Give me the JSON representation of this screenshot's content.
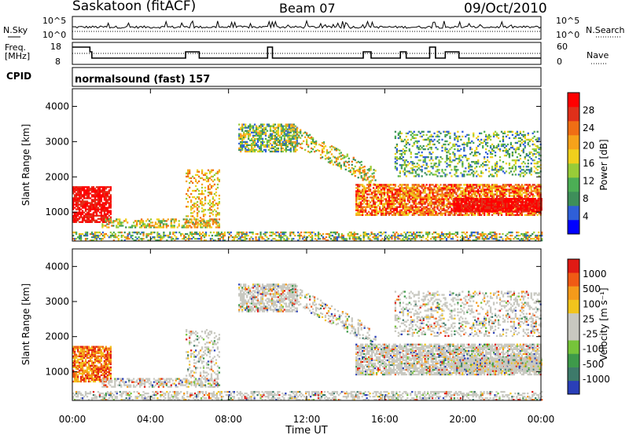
{
  "header": {
    "station": "Saskatoon (fitACF)",
    "beam": "Beam 07",
    "date": "09/Oct/2010"
  },
  "labels": {
    "nsky": "N.Sky",
    "nsearch": "N.Search",
    "freq_line1": "Freq.",
    "freq_line2": "[MHz]",
    "nave": "Nave",
    "cpid": "CPID",
    "cpid_value": "normalsound (fast) 157",
    "time_axis": "Time UT"
  },
  "noise_panel": {
    "left_ticks": [
      "10^5",
      "10^0"
    ],
    "right_ticks": [
      "10^5",
      "10^0"
    ]
  },
  "freq_panel": {
    "left_ticks": [
      "18",
      "8"
    ],
    "right_ticks": [
      "60",
      "0"
    ]
  },
  "chart_data": [
    {
      "type": "heatmap",
      "name": "power",
      "ylabel": "Slant Range [km]",
      "ylim": [
        180,
        4500
      ],
      "yticks": [
        "1000",
        "2000",
        "3000",
        "4000"
      ],
      "colorbar_label": "Power [dB]",
      "colorbar_ticks": [
        "4",
        "8",
        "12",
        "16",
        "20",
        "24",
        "28"
      ],
      "colors": [
        "#0000ff",
        "#2f5fd8",
        "#3e8f5a",
        "#4cae55",
        "#98cc38",
        "#f0d01c",
        "#f6a21a",
        "#f06e14",
        "#e0301a",
        "#ff0000"
      ]
    },
    {
      "type": "heatmap",
      "name": "velocity",
      "ylabel": "Slant Range [km]",
      "ylim": [
        180,
        4500
      ],
      "yticks": [
        "1000",
        "2000",
        "3000",
        "4000"
      ],
      "colorbar_label": "Velocity [m s⁻¹]",
      "colorbar_ticks": [
        "1000",
        "500",
        "100",
        "25",
        "-25",
        "-100",
        "-500",
        "-1000"
      ],
      "colors": [
        "#2a3fb8",
        "#3d7a6a",
        "#3e9a4a",
        "#76c43a",
        "#c8c8c0",
        "#c8c8c0",
        "#f2c41c",
        "#f59a1a",
        "#f05a14",
        "#e01a14"
      ]
    }
  ],
  "time_axis": {
    "ticks": [
      "00:00",
      "04:00",
      "08:00",
      "12:00",
      "16:00",
      "20:00",
      "00:00"
    ]
  }
}
